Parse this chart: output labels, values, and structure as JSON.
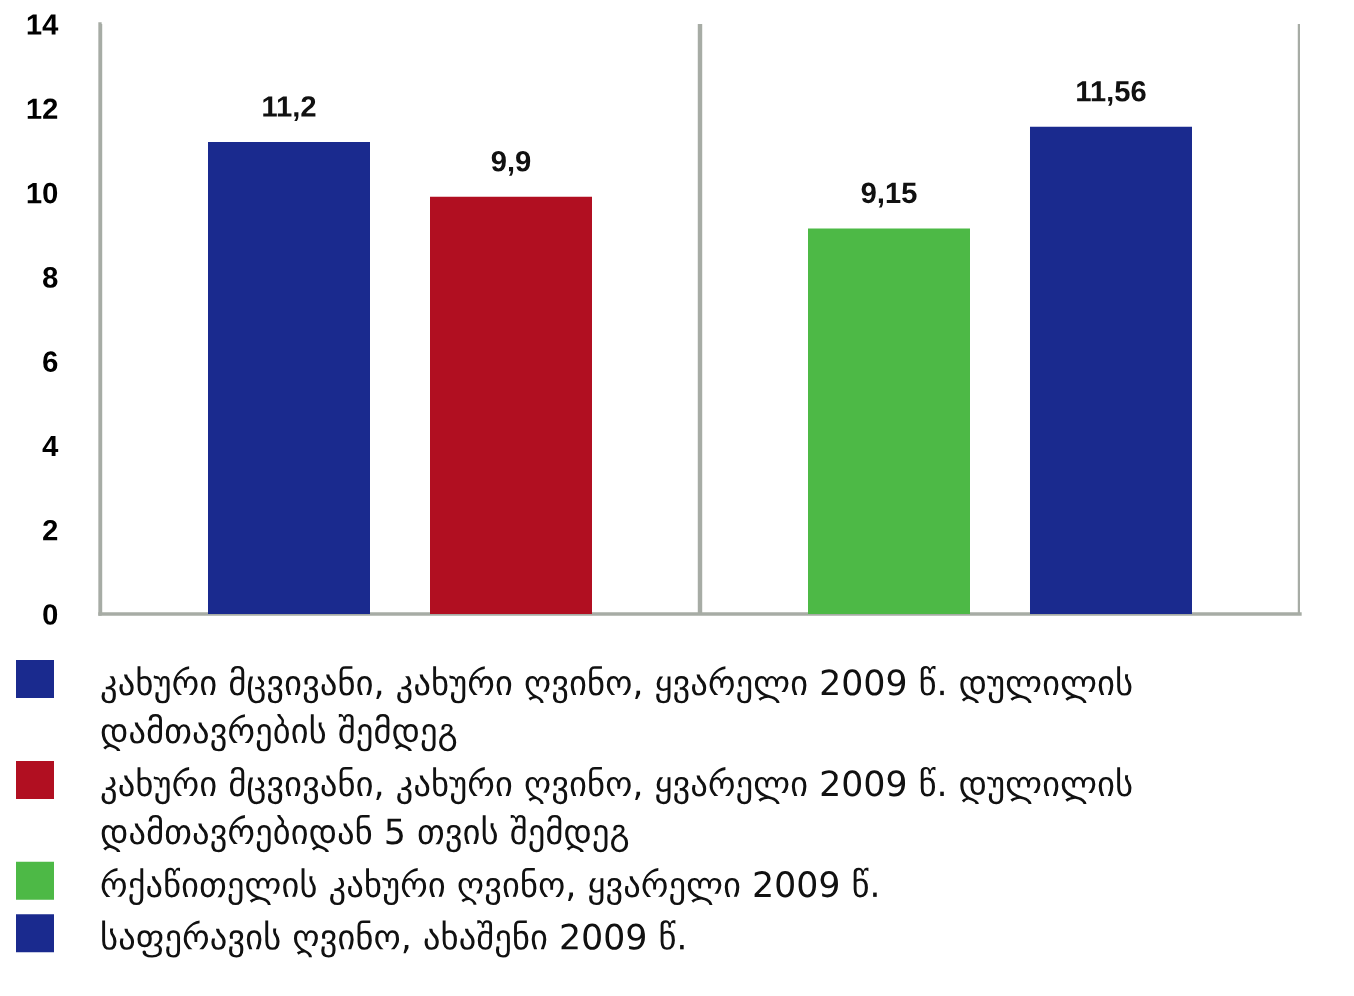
{
  "chart_data": {
    "type": "bar",
    "categories": [
      null,
      null
    ],
    "series": [
      {
        "name": "კახური მცვივანი, კახური ღვინო, ყვარელი 2009 წ. დულილის დამთავრების შემდეგ",
        "color": "#1a2a8e",
        "values": [
          11.2,
          null
        ],
        "value_labels": [
          "11,2",
          null
        ]
      },
      {
        "name": "კახური მცვივანი, კახური ღვინო, ყვარელი 2009 წ. დულილის დამთავრებიდან 5 თვის შემდეგ",
        "color": "#b10f21",
        "values": [
          9.9,
          null
        ],
        "value_labels": [
          "9,9",
          null
        ]
      },
      {
        "name": "რქაწითელის კახური ღვინო, ყვარელი 2009 წ.",
        "color": "#4db946",
        "values": [
          null,
          9.15
        ],
        "value_labels": [
          null,
          "9,15"
        ]
      },
      {
        "name": "საფერავის ღვინო, ახაშენი 2009 წ.",
        "color": "#1a2a8e",
        "values": [
          null,
          11.56
        ],
        "value_labels": [
          null,
          "11,56"
        ]
      }
    ],
    "ylim": [
      0,
      14
    ],
    "yticks": [
      0,
      2,
      4,
      6,
      8,
      10,
      12,
      14
    ],
    "grid": "x",
    "legend": "bottom"
  }
}
